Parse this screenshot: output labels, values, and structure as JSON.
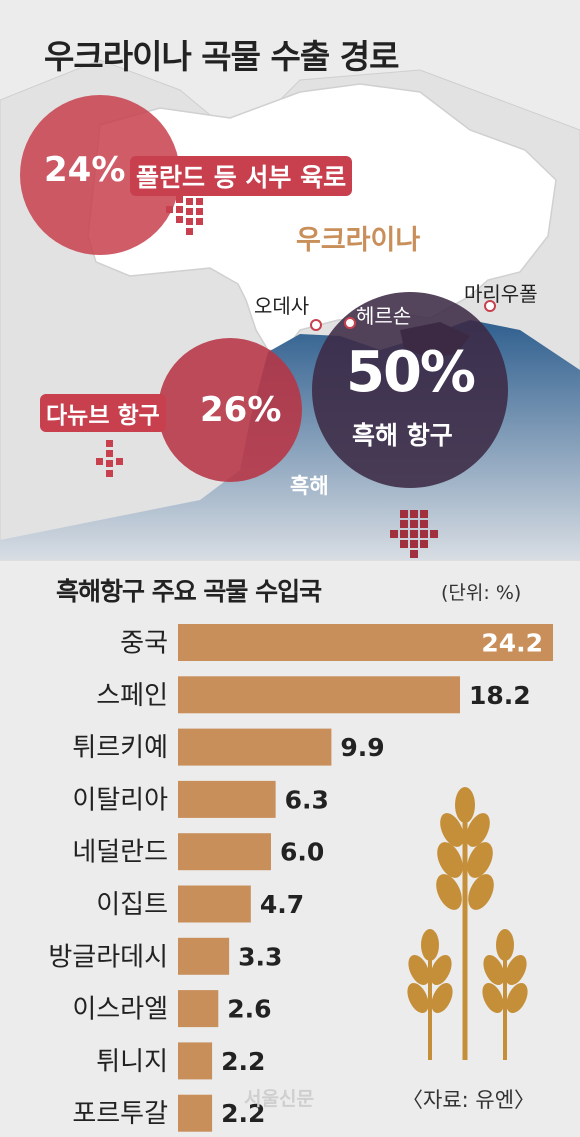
{
  "title": "우크라이나 곡물 수출 경로",
  "map": {
    "country": "우크라이나",
    "sea": "흑해",
    "cities": [
      "오데사",
      "헤르손",
      "마리우폴"
    ],
    "routes": [
      {
        "pct": "24%",
        "label": "폴란드 등 서부 육로"
      },
      {
        "pct": "26%",
        "label": "다뉴브 항구"
      },
      {
        "pct": "50%",
        "label": "흑해 항구"
      }
    ]
  },
  "colors": {
    "accent": "#c8404e",
    "circle_dark": "#3c2a45",
    "bar": "#c98f5a",
    "sea": "#3f6d9a"
  },
  "chart_data": {
    "type": "bar",
    "orientation": "horizontal",
    "title": "흑해항구 주요 곡물 수입국",
    "unit": "(단위: %)",
    "categories": [
      "중국",
      "스페인",
      "튀르키예",
      "이탈리아",
      "네덜란드",
      "이집트",
      "방글라데시",
      "이스라엘",
      "튀니지",
      "포르투갈"
    ],
    "values": [
      24.2,
      18.2,
      9.9,
      6.3,
      6.0,
      4.7,
      3.3,
      2.6,
      2.2,
      2.2
    ],
    "value_labels": [
      "24.2",
      "18.2",
      "9.9",
      "6.3",
      "6.0",
      "4.7",
      "3.3",
      "2.6",
      "2.2",
      "2.2"
    ],
    "xlim": [
      0,
      24.2
    ]
  },
  "source": "〈자료: 유엔〉",
  "watermark": "서울신문"
}
